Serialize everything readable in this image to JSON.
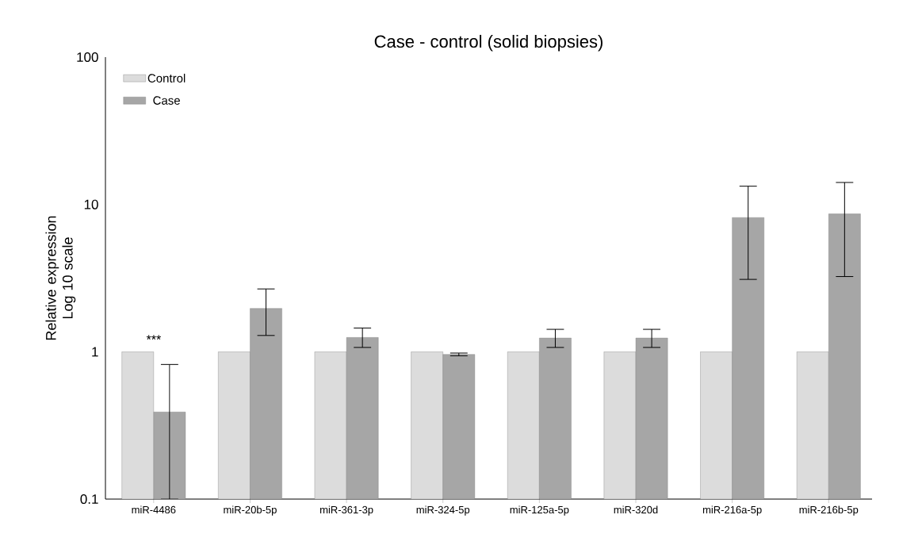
{
  "chart_data": {
    "type": "bar",
    "title": "Case - control (solid biopsies)",
    "ylabel": "Relative expression Log 10 scale",
    "categories": [
      "miR-4486",
      "miR-20b-5p",
      "miR-361-3p",
      "miR-324-5p",
      "miR-125a-5p",
      "miR-320d",
      "miR-216a-5p",
      "miR-216b-5p"
    ],
    "series": [
      {
        "name": "Control",
        "color": "#dcdcdc",
        "values": [
          1,
          1,
          1,
          1,
          1,
          1,
          1,
          1
        ]
      },
      {
        "name": "Case",
        "color": "#a6a6a6",
        "values": [
          0.39,
          1.97,
          1.25,
          0.96,
          1.24,
          1.24,
          8.15,
          8.63
        ],
        "errors": [
          [
            0.1,
            0.82
          ],
          [
            1.29,
            2.67
          ],
          [
            1.07,
            1.45
          ],
          [
            0.94,
            0.98
          ],
          [
            1.07,
            1.42
          ],
          [
            1.07,
            1.42
          ],
          [
            3.1,
            13.3
          ],
          [
            3.24,
            14.1
          ]
        ]
      }
    ],
    "log": "y",
    "ylim": [
      0.1,
      100
    ],
    "yticks": [
      0.1,
      1,
      10,
      100
    ],
    "grid": false,
    "legend": "top left",
    "annotations": [
      "***"
    ]
  }
}
